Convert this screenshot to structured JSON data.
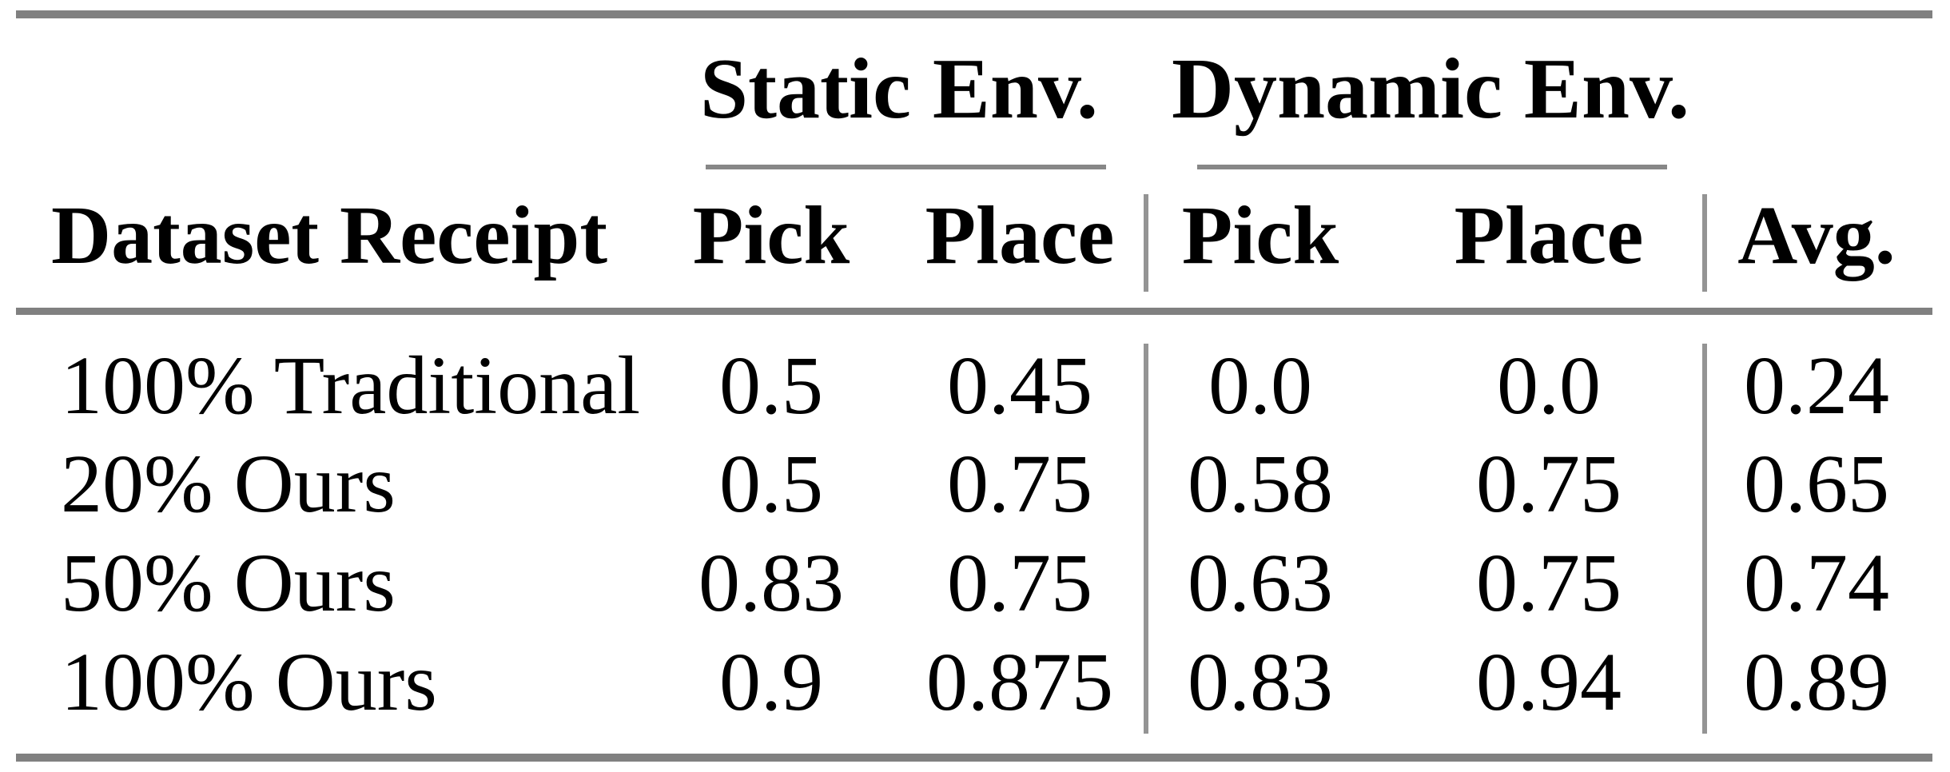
{
  "table": {
    "colors": {
      "rule_gray": "#808080",
      "divider_gray": "#949494",
      "text": "#000000",
      "background": "#ffffff"
    },
    "header": {
      "row_label": "Dataset Receipt",
      "groups": [
        "Static Env.",
        "Dynamic Env."
      ],
      "sub_columns": [
        "Pick",
        "Place",
        "Pick",
        "Place"
      ],
      "avg": "Avg."
    },
    "rows": [
      {
        "label": "100% Traditional",
        "cells": [
          "0.5",
          "0.45",
          "0.0",
          "0.0",
          "0.24"
        ]
      },
      {
        "label": "20% Ours",
        "cells": [
          "0.5",
          "0.75",
          "0.58",
          "0.75",
          "0.65"
        ]
      },
      {
        "label": "50% Ours",
        "cells": [
          "0.83",
          "0.75",
          "0.63",
          "0.75",
          "0.74"
        ]
      },
      {
        "label": "100% Ours",
        "cells": [
          "0.9",
          "0.875",
          "0.83",
          "0.94",
          "0.89"
        ]
      }
    ]
  },
  "chart_data": {
    "type": "table",
    "title": "",
    "column_groups": [
      "",
      "Static Env.",
      "Static Env.",
      "Dynamic Env.",
      "Dynamic Env.",
      ""
    ],
    "columns": [
      "Dataset Receipt",
      "Pick",
      "Place",
      "Pick",
      "Place",
      "Avg."
    ],
    "rows": [
      [
        "100% Traditional",
        0.5,
        0.45,
        0.0,
        0.0,
        0.24
      ],
      [
        "20% Ours",
        0.5,
        0.75,
        0.58,
        0.75,
        0.65
      ],
      [
        "50% Ours",
        0.83,
        0.75,
        0.63,
        0.75,
        0.74
      ],
      [
        "100% Ours",
        0.9,
        0.875,
        0.83,
        0.94,
        0.89
      ]
    ]
  }
}
